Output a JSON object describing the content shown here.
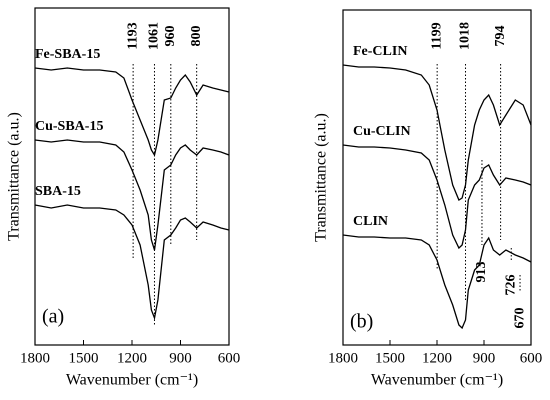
{
  "chart_data": [
    {
      "type": "line",
      "panel_label": "(a)",
      "x_label": "Wavenumber (cm⁻¹)",
      "y_label": "Transmittance (a.u.)",
      "xlim": [
        1800,
        600
      ],
      "xticks": [
        1800,
        1500,
        1200,
        900,
        600
      ],
      "ylim": [
        0,
        337
      ],
      "x": [
        1800,
        1700,
        1600,
        1500,
        1400,
        1300,
        1250,
        1200,
        1150,
        1100,
        1080,
        1061,
        1040,
        1000,
        960,
        930,
        900,
        870,
        840,
        800,
        760,
        700,
        650,
        600
      ],
      "series": [
        {
          "name": "Fe-SBA-15",
          "color": "#000000",
          "values": [
            277,
            275,
            277,
            275,
            275,
            273,
            267,
            245,
            225,
            205,
            195,
            190,
            205,
            245,
            247,
            257,
            265,
            270,
            263,
            250,
            260,
            257,
            255,
            253
          ]
        },
        {
          "name": "Cu-SBA-15",
          "color": "#000000",
          "values": [
            205,
            203,
            205,
            203,
            203,
            200,
            193,
            175,
            155,
            130,
            105,
            95,
            120,
            175,
            180,
            190,
            197,
            200,
            195,
            190,
            197,
            195,
            193,
            190
          ]
        },
        {
          "name": "SBA-15",
          "color": "#000000",
          "values": [
            140,
            137,
            140,
            137,
            137,
            135,
            130,
            120,
            100,
            60,
            35,
            27,
            45,
            105,
            110,
            117,
            125,
            127,
            123,
            117,
            123,
            120,
            117,
            115
          ]
        }
      ],
      "markers": [
        1193,
        1061,
        960,
        800
      ]
    },
    {
      "type": "line",
      "panel_label": "(b)",
      "x_label": "Wavenumber (cm⁻¹)",
      "y_label": "Transmittance (a.u.)",
      "xlim": [
        1800,
        600
      ],
      "xticks": [
        1800,
        1500,
        1200,
        900,
        600
      ],
      "ylim": [
        0,
        335
      ],
      "x": [
        1800,
        1700,
        1600,
        1500,
        1400,
        1300,
        1250,
        1200,
        1150,
        1100,
        1060,
        1040,
        1018,
        1000,
        960,
        930,
        900,
        870,
        840,
        800,
        760,
        700,
        650,
        600
      ],
      "series": [
        {
          "name": "Fe-CLIN",
          "color": "#000000",
          "values": [
            280,
            278,
            278,
            277,
            275,
            270,
            260,
            235,
            195,
            160,
            145,
            147,
            160,
            185,
            220,
            235,
            245,
            250,
            240,
            220,
            230,
            245,
            240,
            220
          ]
        },
        {
          "name": "Cu-CLIN",
          "color": "#000000",
          "values": [
            200,
            198,
            198,
            197,
            195,
            192,
            185,
            165,
            140,
            110,
            97,
            100,
            115,
            145,
            160,
            165,
            177,
            180,
            170,
            160,
            167,
            165,
            163,
            160
          ]
        },
        {
          "name": "CLIN",
          "color": "#000000",
          "values": [
            110,
            108,
            108,
            107,
            107,
            105,
            100,
            85,
            60,
            40,
            20,
            17,
            25,
            55,
            75,
            80,
            100,
            107,
            95,
            90,
            95,
            90,
            87,
            83
          ]
        }
      ],
      "markers": [
        1199,
        1018,
        794
      ],
      "lower_markers": [
        913,
        726,
        670
      ]
    }
  ]
}
